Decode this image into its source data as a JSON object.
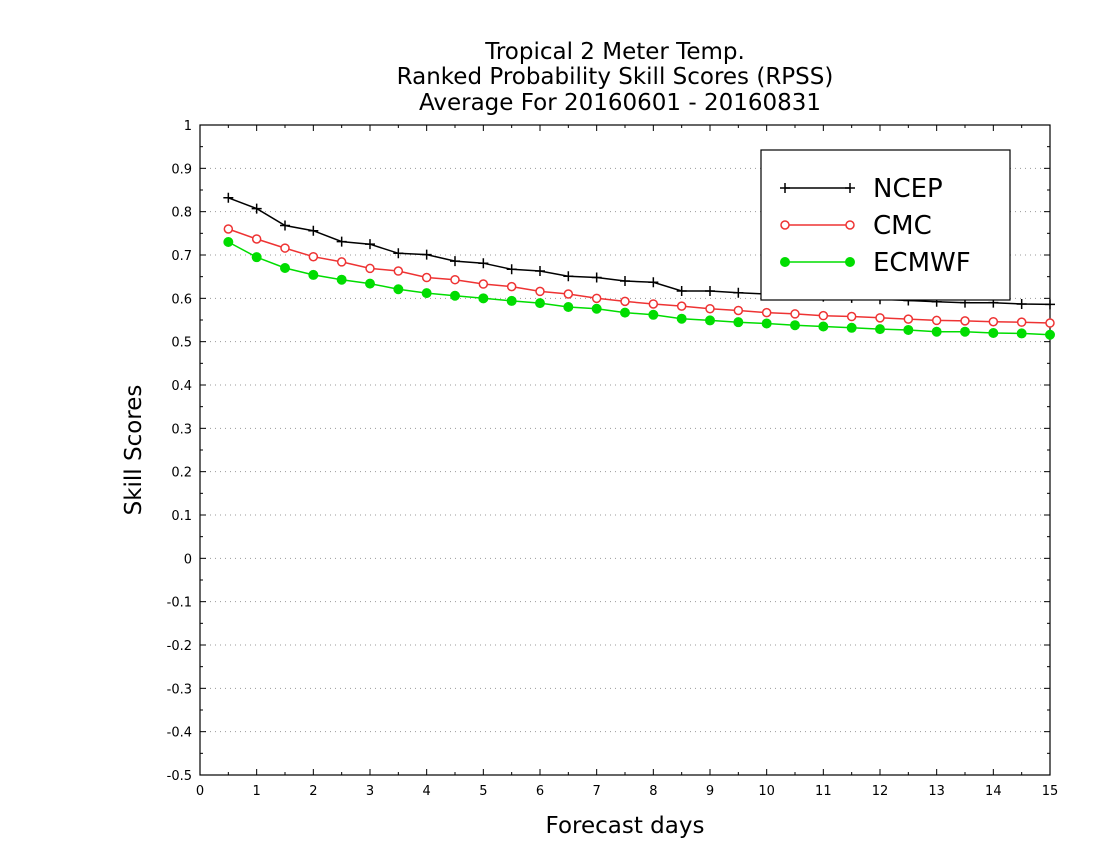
{
  "chart_data": {
    "type": "line",
    "title": [
      "Tropical 2 Meter Temp.",
      "Ranked Probability Skill Scores (RPSS)",
      "Average For 20160601 - 20160831"
    ],
    "xlabel": "Forecast days",
    "ylabel": "Skill Scores",
    "xlim": [
      0,
      15
    ],
    "ylim": [
      -0.5,
      1
    ],
    "xticks": [
      0,
      1,
      2,
      3,
      4,
      5,
      6,
      7,
      8,
      9,
      10,
      11,
      12,
      13,
      14,
      15
    ],
    "xtick_labels": [
      "0",
      "1",
      "2",
      "3",
      "4",
      "5",
      "6",
      "7",
      "8",
      "9",
      "10",
      "11",
      "12",
      "13",
      "14",
      "15"
    ],
    "yticks": [
      -0.5,
      -0.4,
      -0.3,
      -0.2,
      -0.1,
      0,
      0.1,
      0.2,
      0.3,
      0.4,
      0.5,
      0.6,
      0.7,
      0.8,
      0.9,
      1
    ],
    "ytick_labels": [
      "-0.5",
      "-0.4",
      "-0.3",
      "-0.2",
      "-0.1",
      "0",
      "0.1",
      "0.2",
      "0.3",
      "0.4",
      "0.5",
      "0.6",
      "0.7",
      "0.8",
      "0.9",
      "1"
    ],
    "grid": "horizontal dotted",
    "legend_position": "top-right",
    "x": [
      0.5,
      1,
      1.5,
      2,
      2.5,
      3,
      3.5,
      4,
      4.5,
      5,
      5.5,
      6,
      6.5,
      7,
      7.5,
      8,
      8.5,
      9,
      9.5,
      10,
      10.5,
      11,
      11.5,
      12,
      12.5,
      13,
      13.5,
      14,
      14.5,
      15
    ],
    "series": [
      {
        "name": "NCEP",
        "color": "#000000",
        "marker": "plus",
        "values": [
          0.832,
          0.807,
          0.768,
          0.756,
          0.731,
          0.725,
          0.704,
          0.701,
          0.686,
          0.681,
          0.667,
          0.663,
          0.651,
          0.648,
          0.64,
          0.637,
          0.617,
          0.617,
          0.613,
          0.61,
          0.607,
          0.604,
          0.601,
          0.598,
          0.595,
          0.592,
          0.59,
          0.59,
          0.587,
          0.586
        ]
      },
      {
        "name": "CMC",
        "color": "#ee3333",
        "marker": "open-circle",
        "values": [
          0.76,
          0.737,
          0.716,
          0.696,
          0.684,
          0.669,
          0.663,
          0.648,
          0.643,
          0.633,
          0.627,
          0.616,
          0.61,
          0.6,
          0.593,
          0.587,
          0.582,
          0.576,
          0.572,
          0.567,
          0.564,
          0.56,
          0.558,
          0.555,
          0.552,
          0.549,
          0.548,
          0.546,
          0.545,
          0.543
        ]
      },
      {
        "name": "ECMWF",
        "color": "#00dd00",
        "marker": "filled-circle",
        "values": [
          0.73,
          0.695,
          0.67,
          0.654,
          0.643,
          0.634,
          0.621,
          0.612,
          0.606,
          0.6,
          0.594,
          0.589,
          0.58,
          0.576,
          0.567,
          0.562,
          0.553,
          0.549,
          0.545,
          0.542,
          0.538,
          0.535,
          0.532,
          0.529,
          0.527,
          0.523,
          0.523,
          0.52,
          0.519,
          0.516
        ]
      }
    ]
  }
}
